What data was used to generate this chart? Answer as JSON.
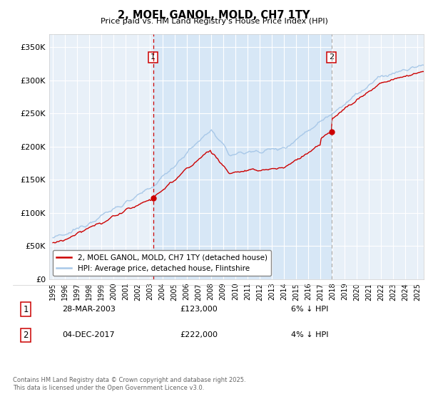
{
  "title": "2, MOEL GANOL, MOLD, CH7 1TY",
  "subtitle": "Price paid vs. HM Land Registry's House Price Index (HPI)",
  "legend_line1": "2, MOEL GANOL, MOLD, CH7 1TY (detached house)",
  "legend_line2": "HPI: Average price, detached house, Flintshire",
  "sale1_label": "1",
  "sale1_date": "28-MAR-2003",
  "sale1_price": "£123,000",
  "sale1_hpi": "6% ↓ HPI",
  "sale2_label": "2",
  "sale2_date": "04-DEC-2017",
  "sale2_price": "£222,000",
  "sale2_hpi": "4% ↓ HPI",
  "footnote": "Contains HM Land Registry data © Crown copyright and database right 2025.\nThis data is licensed under the Open Government Licence v3.0.",
  "hpi_color": "#a8c8e8",
  "price_color": "#cc0000",
  "sale_marker_color": "#cc0000",
  "sale1_vline_color": "#cc0000",
  "sale2_vline_color": "#aaaaaa",
  "shade_color": "#ddeeff",
  "plot_bg": "#e8f0f8",
  "ylim": [
    0,
    370000
  ],
  "yticks": [
    0,
    50000,
    100000,
    150000,
    200000,
    250000,
    300000,
    350000
  ],
  "sale1_x": 2003.24,
  "sale1_y": 123000,
  "sale2_x": 2017.92,
  "sale2_y": 222000,
  "xmin": 1994.7,
  "xmax": 2025.5
}
